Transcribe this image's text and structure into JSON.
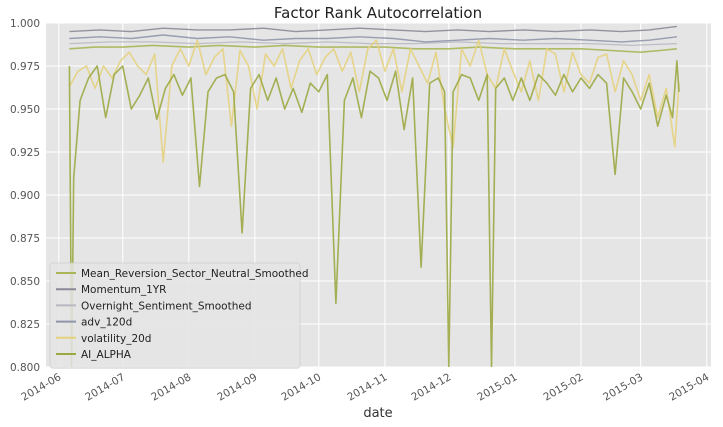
{
  "chart_data": {
    "type": "line",
    "title": "Factor Rank Autocorrelation",
    "xlabel": "date",
    "ylabel": "",
    "ylim": [
      0.8,
      1.0
    ],
    "xlim": [
      "2014-05-26",
      "2015-04-03"
    ],
    "grid": true,
    "legend_position": "lower-left",
    "y_ticks": [
      "0.800",
      "0.825",
      "0.850",
      "0.875",
      "0.900",
      "0.925",
      "0.950",
      "0.975",
      "1.000"
    ],
    "x_ticks": [
      {
        "label": "2014-06",
        "date": "2014-06-01"
      },
      {
        "label": "2014-07",
        "date": "2014-07-01"
      },
      {
        "label": "2014-08",
        "date": "2014-08-01"
      },
      {
        "label": "2014-09",
        "date": "2014-09-01"
      },
      {
        "label": "2014-10",
        "date": "2014-10-01"
      },
      {
        "label": "2014-11",
        "date": "2014-11-01"
      },
      {
        "label": "2014-12",
        "date": "2014-12-01"
      },
      {
        "label": "2015-01",
        "date": "2015-01-01"
      },
      {
        "label": "2015-02",
        "date": "2015-02-01"
      },
      {
        "label": "2015-03",
        "date": "2015-03-01"
      },
      {
        "label": "2015-04",
        "date": "2015-04-01"
      }
    ],
    "series": [
      {
        "name": "Mean_Reversion_Sector_Neutral_Smoothed",
        "color": "#a9b556",
        "width": 1.6,
        "points": [
          [
            "2014-06-06",
            0.985
          ],
          [
            "2014-06-18",
            0.986
          ],
          [
            "2014-07-01",
            0.986
          ],
          [
            "2014-07-15",
            0.987
          ],
          [
            "2014-08-01",
            0.986
          ],
          [
            "2014-08-15",
            0.987
          ],
          [
            "2014-09-01",
            0.986
          ],
          [
            "2014-09-15",
            0.987
          ],
          [
            "2014-10-01",
            0.986
          ],
          [
            "2014-10-15",
            0.986
          ],
          [
            "2014-11-01",
            0.986
          ],
          [
            "2014-11-15",
            0.985
          ],
          [
            "2014-12-01",
            0.985
          ],
          [
            "2014-12-15",
            0.986
          ],
          [
            "2015-01-01",
            0.985
          ],
          [
            "2015-01-15",
            0.985
          ],
          [
            "2015-02-01",
            0.985
          ],
          [
            "2015-02-15",
            0.984
          ],
          [
            "2015-03-01",
            0.983
          ],
          [
            "2015-03-10",
            0.984
          ],
          [
            "2015-03-18",
            0.985
          ]
        ]
      },
      {
        "name": "Momentum_1YR",
        "color": "#8a8a98",
        "width": 1.4,
        "points": [
          [
            "2014-06-06",
            0.995
          ],
          [
            "2014-06-20",
            0.996
          ],
          [
            "2014-07-05",
            0.995
          ],
          [
            "2014-07-20",
            0.997
          ],
          [
            "2014-08-05",
            0.996
          ],
          [
            "2014-08-20",
            0.996
          ],
          [
            "2014-09-05",
            0.997
          ],
          [
            "2014-09-20",
            0.995
          ],
          [
            "2014-10-05",
            0.996
          ],
          [
            "2014-10-20",
            0.997
          ],
          [
            "2014-11-05",
            0.996
          ],
          [
            "2014-11-20",
            0.995
          ],
          [
            "2014-12-05",
            0.996
          ],
          [
            "2014-12-20",
            0.995
          ],
          [
            "2015-01-05",
            0.996
          ],
          [
            "2015-01-20",
            0.995
          ],
          [
            "2015-02-05",
            0.996
          ],
          [
            "2015-02-20",
            0.995
          ],
          [
            "2015-03-05",
            0.996
          ],
          [
            "2015-03-18",
            0.998
          ]
        ]
      },
      {
        "name": "Overnight_Sentiment_Smoothed",
        "color": "#b8b8c2",
        "width": 1.2,
        "points": [
          [
            "2014-06-06",
            0.988
          ],
          [
            "2014-06-25",
            0.989
          ],
          [
            "2014-07-15",
            0.989
          ],
          [
            "2014-08-05",
            0.988
          ],
          [
            "2014-08-25",
            0.989
          ],
          [
            "2014-09-15",
            0.988
          ],
          [
            "2014-10-05",
            0.989
          ],
          [
            "2014-10-25",
            0.988
          ],
          [
            "2014-11-15",
            0.988
          ],
          [
            "2014-12-05",
            0.989
          ],
          [
            "2014-12-25",
            0.988
          ],
          [
            "2015-01-15",
            0.988
          ],
          [
            "2015-02-05",
            0.988
          ],
          [
            "2015-02-25",
            0.987
          ],
          [
            "2015-03-18",
            0.988
          ]
        ]
      },
      {
        "name": "adv_120d",
        "color": "#8f95aa",
        "width": 1.4,
        "points": [
          [
            "2014-06-06",
            0.991
          ],
          [
            "2014-06-20",
            0.992
          ],
          [
            "2014-07-05",
            0.991
          ],
          [
            "2014-07-20",
            0.993
          ],
          [
            "2014-08-05",
            0.991
          ],
          [
            "2014-08-20",
            0.992
          ],
          [
            "2014-09-05",
            0.99
          ],
          [
            "2014-09-20",
            0.991
          ],
          [
            "2014-10-05",
            0.991
          ],
          [
            "2014-10-20",
            0.992
          ],
          [
            "2014-11-05",
            0.991
          ],
          [
            "2014-11-20",
            0.989
          ],
          [
            "2014-12-05",
            0.99
          ],
          [
            "2014-12-20",
            0.991
          ],
          [
            "2015-01-05",
            0.99
          ],
          [
            "2015-01-20",
            0.991
          ],
          [
            "2015-02-05",
            0.99
          ],
          [
            "2015-02-20",
            0.989
          ],
          [
            "2015-03-05",
            0.99
          ],
          [
            "2015-03-18",
            0.992
          ]
        ]
      },
      {
        "name": "volatility_20d",
        "color": "#e4d27e",
        "width": 1.6,
        "points": [
          [
            "2014-06-06",
            0.963
          ],
          [
            "2014-06-10",
            0.972
          ],
          [
            "2014-06-14",
            0.975
          ],
          [
            "2014-06-18",
            0.962
          ],
          [
            "2014-06-22",
            0.975
          ],
          [
            "2014-06-26",
            0.968
          ],
          [
            "2014-06-30",
            0.978
          ],
          [
            "2014-07-04",
            0.983
          ],
          [
            "2014-07-08",
            0.975
          ],
          [
            "2014-07-12",
            0.97
          ],
          [
            "2014-07-16",
            0.982
          ],
          [
            "2014-07-20",
            0.919
          ],
          [
            "2014-07-24",
            0.975
          ],
          [
            "2014-07-28",
            0.985
          ],
          [
            "2014-08-01",
            0.975
          ],
          [
            "2014-08-05",
            0.99
          ],
          [
            "2014-08-09",
            0.97
          ],
          [
            "2014-08-13",
            0.98
          ],
          [
            "2014-08-17",
            0.985
          ],
          [
            "2014-08-21",
            0.94
          ],
          [
            "2014-08-25",
            0.984
          ],
          [
            "2014-08-29",
            0.975
          ],
          [
            "2014-09-02",
            0.95
          ],
          [
            "2014-09-06",
            0.982
          ],
          [
            "2014-09-10",
            0.975
          ],
          [
            "2014-09-14",
            0.985
          ],
          [
            "2014-09-18",
            0.962
          ],
          [
            "2014-09-22",
            0.978
          ],
          [
            "2014-09-26",
            0.985
          ],
          [
            "2014-09-30",
            0.97
          ],
          [
            "2014-10-04",
            0.98
          ],
          [
            "2014-10-08",
            0.985
          ],
          [
            "2014-10-12",
            0.972
          ],
          [
            "2014-10-16",
            0.983
          ],
          [
            "2014-10-20",
            0.96
          ],
          [
            "2014-10-24",
            0.985
          ],
          [
            "2014-10-28",
            0.99
          ],
          [
            "2014-11-01",
            0.972
          ],
          [
            "2014-11-05",
            0.985
          ],
          [
            "2014-11-09",
            0.96
          ],
          [
            "2014-11-13",
            0.985
          ],
          [
            "2014-11-17",
            0.975
          ],
          [
            "2014-11-21",
            0.965
          ],
          [
            "2014-11-25",
            0.983
          ],
          [
            "2014-11-29",
            0.95
          ],
          [
            "2014-12-03",
            0.928
          ],
          [
            "2014-12-07",
            0.985
          ],
          [
            "2014-12-11",
            0.975
          ],
          [
            "2014-12-15",
            0.99
          ],
          [
            "2014-12-19",
            0.97
          ],
          [
            "2014-12-23",
            0.962
          ],
          [
            "2014-12-27",
            0.985
          ],
          [
            "2014-12-31",
            0.972
          ],
          [
            "2015-01-04",
            0.96
          ],
          [
            "2015-01-08",
            0.978
          ],
          [
            "2015-01-12",
            0.955
          ],
          [
            "2015-01-16",
            0.985
          ],
          [
            "2015-01-20",
            0.982
          ],
          [
            "2015-01-24",
            0.96
          ],
          [
            "2015-01-28",
            0.983
          ],
          [
            "2015-02-01",
            0.97
          ],
          [
            "2015-02-05",
            0.965
          ],
          [
            "2015-02-09",
            0.98
          ],
          [
            "2015-02-13",
            0.982
          ],
          [
            "2015-02-17",
            0.96
          ],
          [
            "2015-02-21",
            0.978
          ],
          [
            "2015-02-25",
            0.97
          ],
          [
            "2015-03-01",
            0.955
          ],
          [
            "2015-03-05",
            0.97
          ],
          [
            "2015-03-09",
            0.945
          ],
          [
            "2015-03-13",
            0.962
          ],
          [
            "2015-03-17",
            0.928
          ],
          [
            "2015-03-19",
            0.965
          ]
        ]
      },
      {
        "name": "AI_ALPHA",
        "color": "#9ca842",
        "width": 1.6,
        "points": [
          [
            "2014-06-06",
            0.975
          ],
          [
            "2014-06-07",
            0.8
          ],
          [
            "2014-06-08",
            0.91
          ],
          [
            "2014-06-11",
            0.955
          ],
          [
            "2014-06-15",
            0.968
          ],
          [
            "2014-06-19",
            0.975
          ],
          [
            "2014-06-23",
            0.945
          ],
          [
            "2014-06-27",
            0.97
          ],
          [
            "2014-07-01",
            0.975
          ],
          [
            "2014-07-05",
            0.95
          ],
          [
            "2014-07-09",
            0.958
          ],
          [
            "2014-07-13",
            0.968
          ],
          [
            "2014-07-17",
            0.944
          ],
          [
            "2014-07-21",
            0.962
          ],
          [
            "2014-07-25",
            0.97
          ],
          [
            "2014-07-29",
            0.958
          ],
          [
            "2014-08-02",
            0.968
          ],
          [
            "2014-08-06",
            0.905
          ],
          [
            "2014-08-10",
            0.96
          ],
          [
            "2014-08-14",
            0.968
          ],
          [
            "2014-08-18",
            0.97
          ],
          [
            "2014-08-22",
            0.96
          ],
          [
            "2014-08-26",
            0.878
          ],
          [
            "2014-08-30",
            0.962
          ],
          [
            "2014-09-03",
            0.97
          ],
          [
            "2014-09-07",
            0.955
          ],
          [
            "2014-09-11",
            0.968
          ],
          [
            "2014-09-15",
            0.95
          ],
          [
            "2014-09-19",
            0.962
          ],
          [
            "2014-09-23",
            0.948
          ],
          [
            "2014-09-27",
            0.965
          ],
          [
            "2014-10-01",
            0.96
          ],
          [
            "2014-10-05",
            0.97
          ],
          [
            "2014-10-09",
            0.837
          ],
          [
            "2014-10-13",
            0.955
          ],
          [
            "2014-10-17",
            0.968
          ],
          [
            "2014-10-21",
            0.945
          ],
          [
            "2014-10-25",
            0.972
          ],
          [
            "2014-10-29",
            0.968
          ],
          [
            "2014-11-02",
            0.955
          ],
          [
            "2014-11-06",
            0.972
          ],
          [
            "2014-11-10",
            0.938
          ],
          [
            "2014-11-14",
            0.968
          ],
          [
            "2014-11-18",
            0.858
          ],
          [
            "2014-11-22",
            0.965
          ],
          [
            "2014-11-26",
            0.968
          ],
          [
            "2014-11-29",
            0.96
          ],
          [
            "2014-12-01",
            0.8
          ],
          [
            "2014-12-03",
            0.96
          ],
          [
            "2014-12-07",
            0.97
          ],
          [
            "2014-12-11",
            0.968
          ],
          [
            "2014-12-15",
            0.955
          ],
          [
            "2014-12-19",
            0.97
          ],
          [
            "2014-12-21",
            0.8
          ],
          [
            "2014-12-23",
            0.962
          ],
          [
            "2014-12-27",
            0.968
          ],
          [
            "2014-12-31",
            0.955
          ],
          [
            "2015-01-04",
            0.968
          ],
          [
            "2015-01-08",
            0.955
          ],
          [
            "2015-01-12",
            0.97
          ],
          [
            "2015-01-16",
            0.965
          ],
          [
            "2015-01-20",
            0.958
          ],
          [
            "2015-01-24",
            0.97
          ],
          [
            "2015-01-28",
            0.96
          ],
          [
            "2015-02-01",
            0.968
          ],
          [
            "2015-02-05",
            0.962
          ],
          [
            "2015-02-09",
            0.97
          ],
          [
            "2015-02-13",
            0.965
          ],
          [
            "2015-02-17",
            0.912
          ],
          [
            "2015-02-21",
            0.968
          ],
          [
            "2015-02-25",
            0.96
          ],
          [
            "2015-03-01",
            0.95
          ],
          [
            "2015-03-05",
            0.965
          ],
          [
            "2015-03-09",
            0.94
          ],
          [
            "2015-03-13",
            0.958
          ],
          [
            "2015-03-16",
            0.945
          ],
          [
            "2015-03-18",
            0.978
          ],
          [
            "2015-03-19",
            0.96
          ]
        ]
      }
    ]
  }
}
